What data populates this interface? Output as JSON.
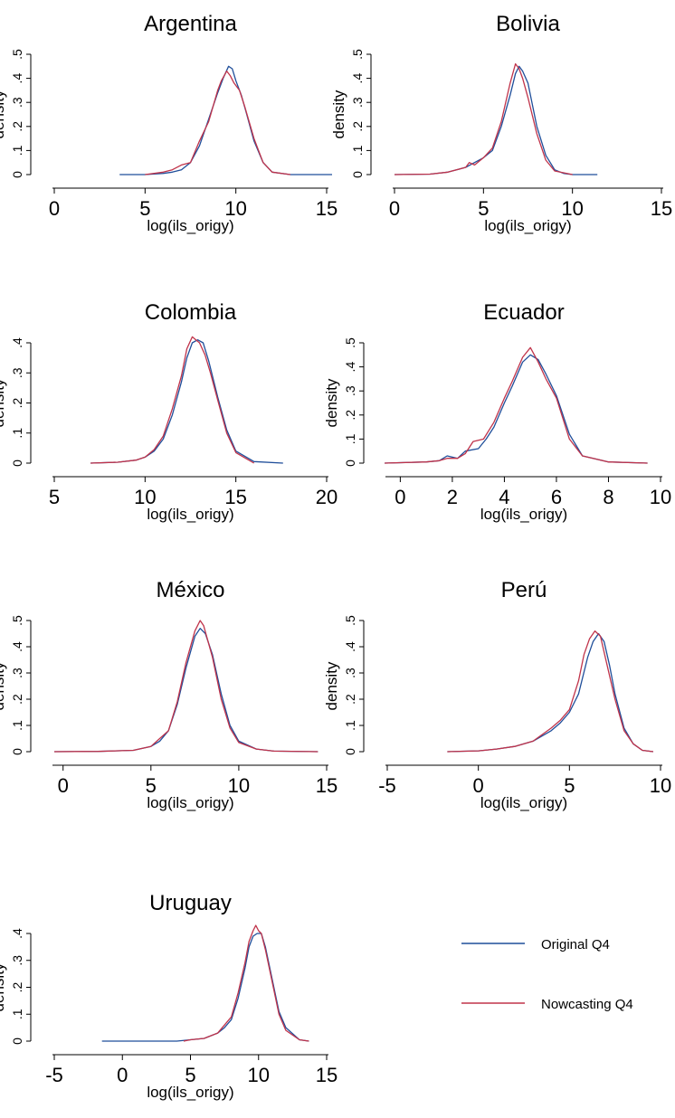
{
  "colors": {
    "original": "#1f4e9a",
    "nowcasting": "#c0334a"
  },
  "legend": {
    "original_label": "Original Q4",
    "nowcasting_label": "Nowcasting Q4"
  },
  "chart_data": [
    {
      "type": "line",
      "title": "Argentina",
      "xlabel": "log(ils_origy)",
      "ylabel": "density",
      "xlim": [
        0,
        15
      ],
      "ylim": [
        0,
        0.5
      ],
      "xticks": [
        0,
        5,
        10,
        15
      ],
      "xtick_labels": [
        "0",
        "5",
        "10",
        "15"
      ],
      "yticks": [
        0,
        0.1,
        0.2,
        0.3,
        0.4,
        0.5
      ],
      "ytick_labels": [
        "0",
        ".1",
        ".2",
        ".3",
        ".4",
        ".5"
      ],
      "series": [
        {
          "name": "Original Q4",
          "color": "#1f4e9a",
          "x": [
            3.6,
            5,
            6,
            6.5,
            7,
            7.5,
            8,
            8.5,
            9,
            9.3,
            9.6,
            9.8,
            10,
            10.3,
            10.6,
            11,
            11.5,
            12,
            13,
            15.3
          ],
          "y": [
            0,
            0,
            0.005,
            0.01,
            0.02,
            0.05,
            0.12,
            0.23,
            0.34,
            0.4,
            0.45,
            0.44,
            0.39,
            0.33,
            0.25,
            0.14,
            0.05,
            0.01,
            0,
            0
          ]
        },
        {
          "name": "Nowcasting Q4",
          "color": "#c0334a",
          "x": [
            5,
            6,
            6.5,
            7,
            7.5,
            8,
            8.5,
            9,
            9.2,
            9.5,
            9.7,
            9.9,
            10.2,
            10.5,
            11,
            11.5,
            12,
            13
          ],
          "y": [
            0,
            0.01,
            0.02,
            0.04,
            0.05,
            0.14,
            0.22,
            0.35,
            0.39,
            0.43,
            0.41,
            0.38,
            0.35,
            0.28,
            0.15,
            0.05,
            0.01,
            0
          ]
        }
      ]
    },
    {
      "type": "line",
      "title": "Bolivia",
      "xlabel": "log(ils_origy)",
      "ylabel": "density",
      "xlim": [
        0,
        15
      ],
      "ylim": [
        0,
        0.5
      ],
      "xticks": [
        0,
        5,
        10,
        15
      ],
      "xtick_labels": [
        "0",
        "5",
        "10",
        "15"
      ],
      "yticks": [
        0,
        0.1,
        0.2,
        0.3,
        0.4,
        0.5
      ],
      "ytick_labels": [
        "0",
        ".1",
        ".2",
        ".3",
        ".4",
        ".5"
      ],
      "series": [
        {
          "name": "Original Q4",
          "color": "#1f4e9a",
          "x": [
            0,
            2,
            3,
            4,
            4.5,
            5,
            5.5,
            6,
            6.5,
            6.8,
            7,
            7.2,
            7.5,
            8,
            8.5,
            9,
            9.5,
            10,
            11.4
          ],
          "y": [
            0,
            0.002,
            0.01,
            0.03,
            0.05,
            0.07,
            0.1,
            0.2,
            0.33,
            0.42,
            0.45,
            0.43,
            0.38,
            0.2,
            0.08,
            0.02,
            0.005,
            0,
            0
          ]
        },
        {
          "name": "Nowcasting Q4",
          "color": "#c0334a",
          "x": [
            0,
            2,
            3,
            4,
            4.2,
            4.5,
            5,
            5.5,
            6,
            6.5,
            6.8,
            7,
            7.2,
            7.5,
            8,
            8.5,
            9,
            10
          ],
          "y": [
            0,
            0.002,
            0.01,
            0.03,
            0.05,
            0.04,
            0.07,
            0.11,
            0.22,
            0.38,
            0.46,
            0.44,
            0.4,
            0.32,
            0.17,
            0.06,
            0.015,
            0
          ]
        }
      ]
    },
    {
      "type": "line",
      "title": "Colombia",
      "xlabel": "log(ils_origy)",
      "ylabel": "density",
      "xlim": [
        5,
        20
      ],
      "ylim": [
        0,
        0.45
      ],
      "xticks": [
        5,
        10,
        15,
        20
      ],
      "xtick_labels": [
        "5",
        "10",
        "15",
        "20"
      ],
      "yticks": [
        0,
        0.1,
        0.2,
        0.3,
        0.4
      ],
      "ytick_labels": [
        "0",
        ".1",
        ".2",
        ".3",
        ".4"
      ],
      "series": [
        {
          "name": "Original Q4",
          "color": "#1f4e9a",
          "x": [
            7,
            8.5,
            9.5,
            10,
            10.5,
            11,
            11.5,
            12,
            12.3,
            12.6,
            12.9,
            13.2,
            13.5,
            14,
            14.5,
            15,
            16,
            17.6
          ],
          "y": [
            0,
            0.003,
            0.01,
            0.02,
            0.04,
            0.08,
            0.16,
            0.27,
            0.35,
            0.4,
            0.41,
            0.4,
            0.34,
            0.22,
            0.11,
            0.04,
            0.005,
            0
          ]
        },
        {
          "name": "Nowcasting Q4",
          "color": "#c0334a",
          "x": [
            7,
            8.5,
            9.5,
            10,
            10.5,
            11,
            11.5,
            12,
            12.3,
            12.6,
            12.8,
            13,
            13.3,
            13.6,
            14,
            14.5,
            15,
            16
          ],
          "y": [
            0,
            0.003,
            0.01,
            0.02,
            0.045,
            0.09,
            0.18,
            0.29,
            0.38,
            0.42,
            0.41,
            0.4,
            0.36,
            0.3,
            0.21,
            0.1,
            0.035,
            0
          ]
        }
      ]
    },
    {
      "type": "line",
      "title": "Ecuador",
      "xlabel": "log(ils_origy)",
      "ylabel": "density",
      "xlim": [
        -0.5,
        10
      ],
      "ylim": [
        0,
        0.5
      ],
      "xticks": [
        0,
        2,
        4,
        6,
        8,
        10
      ],
      "xtick_labels": [
        "0",
        "2",
        "4",
        "6",
        "8",
        "10"
      ],
      "yticks": [
        0,
        0.1,
        0.2,
        0.3,
        0.4,
        0.5
      ],
      "ytick_labels": [
        "0",
        ".1",
        ".2",
        ".3",
        ".4",
        ".5"
      ],
      "series": [
        {
          "name": "Original Q4",
          "color": "#1f4e9a",
          "x": [
            -0.6,
            1,
            1.5,
            1.8,
            2.2,
            2.5,
            3,
            3.3,
            3.6,
            4,
            4.3,
            4.7,
            5,
            5.3,
            5.6,
            6,
            6.5,
            7,
            8,
            9.5
          ],
          "y": [
            0,
            0.005,
            0.01,
            0.03,
            0.02,
            0.05,
            0.06,
            0.1,
            0.15,
            0.25,
            0.32,
            0.42,
            0.45,
            0.43,
            0.37,
            0.28,
            0.12,
            0.03,
            0.005,
            0
          ]
        },
        {
          "name": "Nowcasting Q4",
          "color": "#c0334a",
          "x": [
            -0.6,
            1,
            1.5,
            1.8,
            2.2,
            2.5,
            2.8,
            3.2,
            3.6,
            4,
            4.3,
            4.7,
            5,
            5.3,
            5.6,
            6,
            6.5,
            7,
            8,
            9.5
          ],
          "y": [
            0,
            0.005,
            0.01,
            0.02,
            0.02,
            0.04,
            0.09,
            0.1,
            0.17,
            0.27,
            0.34,
            0.44,
            0.48,
            0.42,
            0.35,
            0.27,
            0.1,
            0.03,
            0.005,
            0
          ]
        }
      ]
    },
    {
      "type": "line",
      "title": "México",
      "xlabel": "log(ils_origy)",
      "ylabel": "density",
      "xlim": [
        -0.5,
        15
      ],
      "ylim": [
        0,
        0.55
      ],
      "xticks": [
        0,
        5,
        10,
        15
      ],
      "xtick_labels": [
        "0",
        "5",
        "10",
        "15"
      ],
      "yticks": [
        0,
        0.1,
        0.2,
        0.3,
        0.4,
        0.5
      ],
      "ytick_labels": [
        "0",
        ".1",
        ".2",
        ".3",
        ".4",
        ".5"
      ],
      "series": [
        {
          "name": "Original Q4",
          "color": "#1f4e9a",
          "x": [
            -0.5,
            2,
            4,
            5,
            5.5,
            6,
            6.5,
            7,
            7.5,
            7.8,
            8.1,
            8.5,
            9,
            9.5,
            10,
            11,
            12,
            14.5
          ],
          "y": [
            0,
            0.001,
            0.005,
            0.02,
            0.04,
            0.08,
            0.18,
            0.32,
            0.44,
            0.47,
            0.45,
            0.37,
            0.22,
            0.1,
            0.04,
            0.01,
            0.002,
            0
          ]
        },
        {
          "name": "Nowcasting Q4",
          "color": "#c0334a",
          "x": [
            -0.5,
            2,
            4,
            5,
            5.5,
            6,
            6.5,
            7,
            7.5,
            7.8,
            8,
            8.5,
            9,
            9.5,
            10,
            11,
            12,
            14.5
          ],
          "y": [
            0,
            0.001,
            0.005,
            0.02,
            0.05,
            0.08,
            0.19,
            0.34,
            0.46,
            0.5,
            0.48,
            0.36,
            0.2,
            0.09,
            0.035,
            0.01,
            0.002,
            0
          ]
        }
      ]
    },
    {
      "type": "line",
      "title": "Perú",
      "xlabel": "log(ils_origy)",
      "ylabel": "density",
      "xlim": [
        -5,
        10
      ],
      "ylim": [
        0,
        0.55
      ],
      "xticks": [
        -5,
        0,
        5,
        10
      ],
      "xtick_labels": [
        "-5",
        "0",
        "5",
        "10"
      ],
      "yticks": [
        0,
        0.1,
        0.2,
        0.3,
        0.4,
        0.5
      ],
      "ytick_labels": [
        "0",
        ".1",
        ".2",
        ".3",
        ".4",
        ".5"
      ],
      "series": [
        {
          "name": "Original Q4",
          "color": "#1f4e9a",
          "x": [
            -1.7,
            0,
            1,
            2,
            3,
            4,
            4.5,
            5,
            5.5,
            6,
            6.3,
            6.6,
            6.9,
            7.2,
            7.5,
            8,
            8.5,
            9,
            9.6
          ],
          "y": [
            0,
            0.003,
            0.01,
            0.02,
            0.04,
            0.08,
            0.11,
            0.15,
            0.22,
            0.36,
            0.42,
            0.45,
            0.42,
            0.33,
            0.22,
            0.09,
            0.03,
            0.005,
            0
          ]
        },
        {
          "name": "Nowcasting Q4",
          "color": "#c0334a",
          "x": [
            -1.7,
            0,
            1,
            2,
            3,
            4,
            4.5,
            5,
            5.5,
            5.8,
            6.1,
            6.4,
            6.7,
            7,
            7.5,
            8,
            8.5,
            9,
            9.6
          ],
          "y": [
            0,
            0.003,
            0.01,
            0.02,
            0.04,
            0.09,
            0.12,
            0.16,
            0.27,
            0.37,
            0.43,
            0.46,
            0.44,
            0.35,
            0.2,
            0.08,
            0.03,
            0.005,
            0
          ]
        }
      ]
    },
    {
      "type": "line",
      "title": "Uruguay",
      "xlabel": "log(ils_origy)",
      "ylabel": "density",
      "xlim": [
        -5,
        15
      ],
      "ylim": [
        0,
        0.45
      ],
      "xticks": [
        -5,
        0,
        5,
        10,
        15
      ],
      "xtick_labels": [
        "-5",
        "0",
        "5",
        "10",
        "15"
      ],
      "yticks": [
        0,
        0.1,
        0.2,
        0.3,
        0.4
      ],
      "ytick_labels": [
        "0",
        ".1",
        ".2",
        ".3",
        ".4"
      ],
      "series": [
        {
          "name": "Original Q4",
          "color": "#1f4e9a",
          "x": [
            -1.5,
            4,
            5,
            6,
            7,
            7.5,
            8,
            8.5,
            9,
            9.3,
            9.6,
            9.9,
            10.2,
            10.5,
            11,
            11.5,
            12,
            13,
            13.7
          ],
          "y": [
            0,
            0,
            0.005,
            0.01,
            0.03,
            0.05,
            0.08,
            0.16,
            0.27,
            0.35,
            0.39,
            0.4,
            0.4,
            0.35,
            0.23,
            0.11,
            0.05,
            0.005,
            0
          ]
        },
        {
          "name": "Nowcasting Q4",
          "color": "#c0334a",
          "x": [
            4.5,
            5,
            6,
            7,
            7.5,
            8,
            8.5,
            9,
            9.3,
            9.6,
            9.8,
            10,
            10.2,
            10.5,
            11,
            11.5,
            12,
            13,
            13.7
          ],
          "y": [
            0,
            0.005,
            0.01,
            0.03,
            0.06,
            0.09,
            0.18,
            0.29,
            0.37,
            0.41,
            0.43,
            0.41,
            0.4,
            0.34,
            0.22,
            0.1,
            0.04,
            0.005,
            0
          ]
        }
      ]
    }
  ]
}
